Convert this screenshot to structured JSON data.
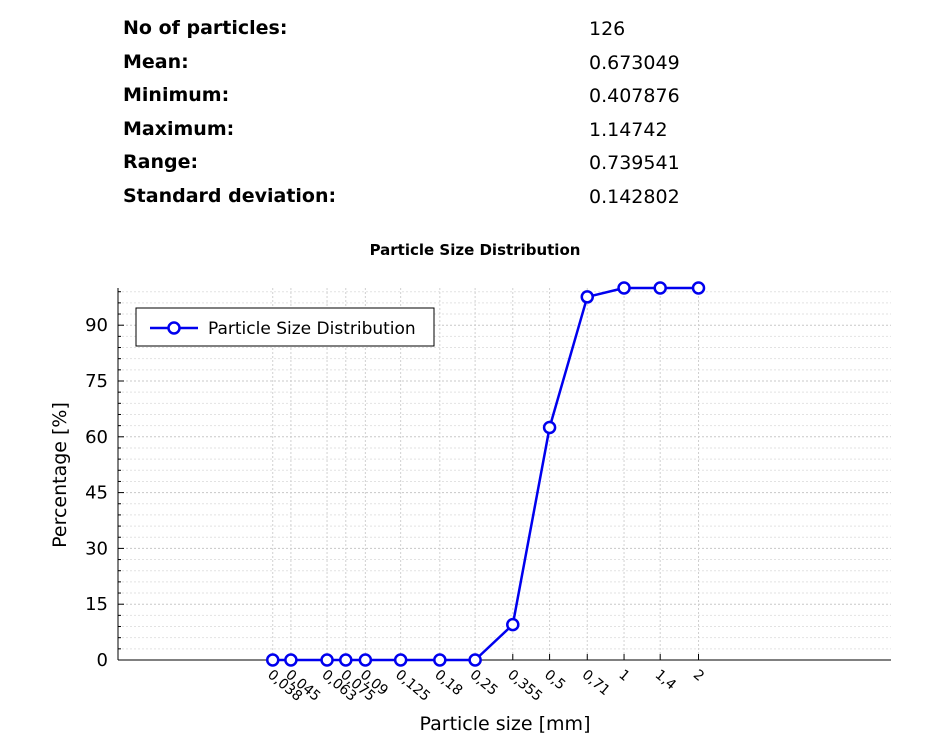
{
  "stats": {
    "rows": [
      {
        "label": "No of particles:",
        "value": "126"
      },
      {
        "label": "Mean:",
        "value": "0.673049"
      },
      {
        "label": "Minimum:",
        "value": "0.407876"
      },
      {
        "label": "Maximum:",
        "value": "1.14742"
      },
      {
        "label": "Range:",
        "value": "0.739541"
      },
      {
        "label": "Standard deviation:",
        "value": "0.142802"
      }
    ]
  },
  "chart_data": {
    "type": "line",
    "title": "Particle Size Distribution",
    "xlabel": "Particle size [mm]",
    "ylabel": "Percentage [%]",
    "x_scale": "log",
    "x_tick_labels": [
      "0,038",
      "0,045",
      "0,063",
      "0,075",
      "0,09",
      "0,125",
      "0,18",
      "0,25",
      "0,355",
      "0,5",
      "0,71",
      "1",
      "1,4",
      "2"
    ],
    "x": [
      0.038,
      0.045,
      0.063,
      0.075,
      0.09,
      0.125,
      0.18,
      0.25,
      0.355,
      0.5,
      0.71,
      1,
      1.4,
      2
    ],
    "xlim": [
      0.009,
      12
    ],
    "yticks": [
      0,
      15,
      30,
      45,
      60,
      75,
      90
    ],
    "ylim": [
      0,
      100
    ],
    "grid": true,
    "legend_position": "top-left",
    "series": [
      {
        "name": "Particle Size Distribution",
        "color": "#0000ee",
        "marker": "circle",
        "values": [
          0,
          0,
          0,
          0,
          0,
          0,
          0,
          0,
          9.5,
          62.5,
          97.6,
          100,
          100,
          100
        ]
      }
    ]
  }
}
